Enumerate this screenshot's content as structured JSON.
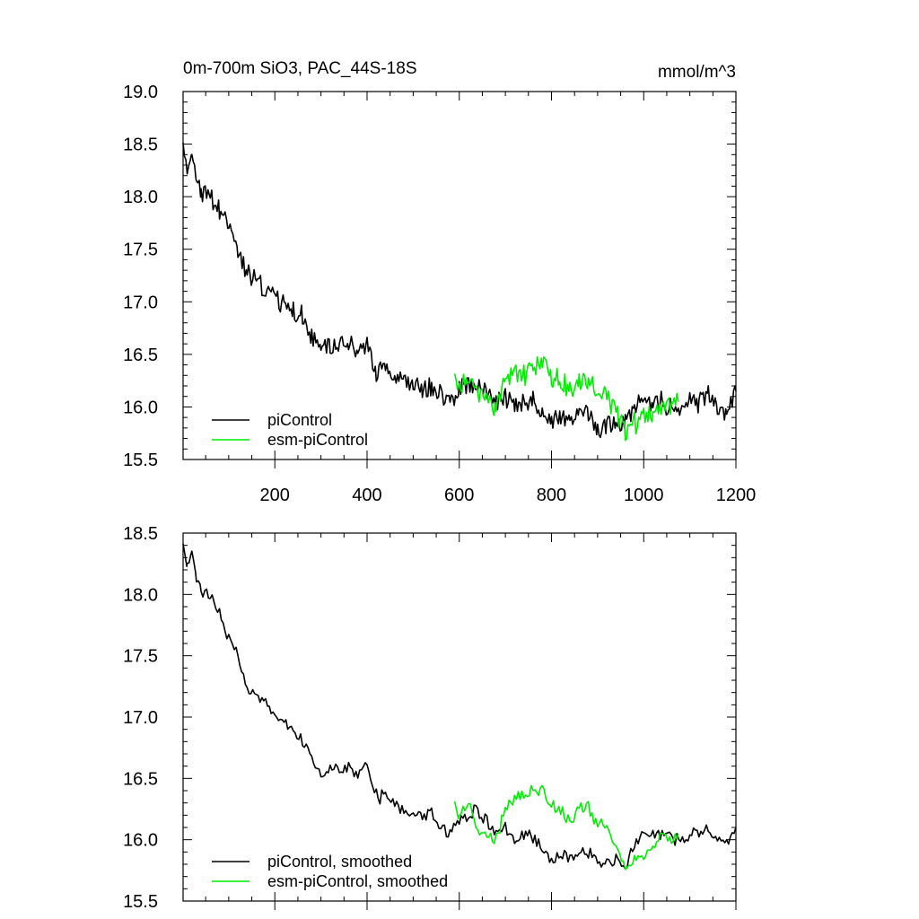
{
  "header": {
    "title": "0m-700m SiO3, PAC_44S-18S",
    "units": "mmol/m^3"
  },
  "colors": {
    "piControl": "#000000",
    "esm_piControl": "#00ee00"
  },
  "chart_data": [
    {
      "type": "line",
      "title": "0m-700m SiO3, PAC_44S-18S",
      "units_label": "mmol/m^3",
      "xlabel": "",
      "ylabel": "",
      "xlim": [
        1,
        1200
      ],
      "ylim": [
        15.5,
        19.0
      ],
      "x_ticks": [
        200,
        400,
        600,
        800,
        1000,
        1200
      ],
      "x_tick_labels": [
        "200",
        "400",
        "600",
        "800",
        "1000",
        "1200"
      ],
      "y_ticks": [
        15.5,
        16.0,
        16.5,
        17.0,
        17.5,
        18.0,
        18.5,
        19.0
      ],
      "y_tick_labels": [
        "15.5",
        "16.0",
        "16.5",
        "17.0",
        "17.5",
        "18.0",
        "18.5",
        "19.0"
      ],
      "grid": false,
      "legend_position": "bottom-left",
      "series": [
        {
          "name": "piControl",
          "color": "#000000",
          "x": [
            1,
            10,
            20,
            30,
            40,
            60,
            80,
            100,
            120,
            140,
            160,
            180,
            200,
            220,
            240,
            260,
            280,
            300,
            320,
            340,
            360,
            380,
            400,
            420,
            440,
            460,
            480,
            500,
            520,
            540,
            560,
            580,
            600,
            620,
            640,
            660,
            680,
            700,
            720,
            740,
            760,
            780,
            800,
            820,
            840,
            860,
            880,
            900,
            920,
            940,
            960,
            980,
            1000,
            1020,
            1040,
            1060,
            1080,
            1100,
            1120,
            1140,
            1160,
            1180,
            1200
          ],
          "y": [
            18.45,
            18.3,
            18.35,
            18.2,
            18.05,
            18.0,
            17.85,
            17.7,
            17.45,
            17.3,
            17.2,
            17.1,
            17.05,
            16.95,
            16.9,
            16.85,
            16.7,
            16.55,
            16.6,
            16.55,
            16.6,
            16.5,
            16.6,
            16.3,
            16.35,
            16.3,
            16.25,
            16.2,
            16.15,
            16.2,
            16.1,
            16.05,
            16.15,
            16.2,
            16.25,
            16.15,
            16.05,
            16.1,
            16.0,
            16.05,
            16.05,
            15.95,
            15.85,
            15.9,
            15.85,
            15.95,
            15.9,
            15.8,
            15.85,
            15.85,
            15.85,
            15.95,
            16.1,
            16.05,
            16.05,
            16.0,
            16.0,
            16.05,
            16.05,
            16.1,
            16.0,
            15.95,
            16.15
          ]
        },
        {
          "name": "esm-piControl",
          "color": "#00ee00",
          "x": [
            590,
            600,
            620,
            640,
            660,
            680,
            700,
            720,
            740,
            760,
            780,
            800,
            820,
            840,
            860,
            880,
            900,
            920,
            940,
            960,
            980,
            1000,
            1020,
            1040,
            1060,
            1075
          ],
          "y": [
            16.3,
            16.2,
            16.3,
            16.15,
            16.05,
            16.0,
            16.25,
            16.35,
            16.3,
            16.35,
            16.4,
            16.3,
            16.25,
            16.15,
            16.25,
            16.25,
            16.15,
            16.1,
            15.95,
            15.75,
            15.85,
            15.9,
            15.95,
            16.0,
            16.0,
            16.05
          ]
        }
      ]
    },
    {
      "type": "line",
      "title": "",
      "xlabel": "",
      "ylabel": "",
      "xlim": [
        1,
        1200
      ],
      "ylim": [
        15.5,
        18.5
      ],
      "x_ticks": [
        200,
        400,
        600,
        800,
        1000,
        1200
      ],
      "y_ticks": [
        15.5,
        16.0,
        16.5,
        17.0,
        17.5,
        18.0,
        18.5
      ],
      "y_tick_labels": [
        "15.5",
        "16.0",
        "16.5",
        "17.0",
        "17.5",
        "18.0",
        "18.5"
      ],
      "grid": false,
      "legend_position": "bottom-left",
      "series": [
        {
          "name": "piControl, smoothed",
          "color": "#000000",
          "x": [
            1,
            10,
            20,
            30,
            40,
            60,
            80,
            100,
            120,
            140,
            160,
            180,
            200,
            220,
            240,
            260,
            280,
            300,
            320,
            340,
            360,
            380,
            400,
            420,
            440,
            460,
            480,
            500,
            520,
            540,
            560,
            580,
            600,
            620,
            640,
            660,
            680,
            700,
            720,
            740,
            760,
            780,
            800,
            820,
            840,
            860,
            880,
            900,
            920,
            940,
            960,
            980,
            1000,
            1020,
            1040,
            1060,
            1080,
            1100,
            1120,
            1140,
            1160,
            1180,
            1200
          ],
          "y": [
            18.4,
            18.25,
            18.35,
            18.1,
            18.05,
            18.0,
            17.85,
            17.65,
            17.5,
            17.25,
            17.15,
            17.1,
            17.0,
            16.95,
            16.9,
            16.8,
            16.7,
            16.5,
            16.6,
            16.55,
            16.6,
            16.5,
            16.6,
            16.35,
            16.35,
            16.3,
            16.25,
            16.2,
            16.2,
            16.2,
            16.1,
            16.05,
            16.15,
            16.2,
            16.25,
            16.15,
            16.05,
            16.1,
            16.0,
            16.05,
            16.0,
            15.95,
            15.85,
            15.9,
            15.85,
            15.9,
            15.9,
            15.85,
            15.8,
            15.85,
            15.8,
            15.95,
            16.1,
            16.05,
            16.05,
            16.0,
            16.0,
            16.05,
            16.05,
            16.1,
            16.0,
            15.95,
            16.1
          ]
        },
        {
          "name": "esm-piControl, smoothed",
          "color": "#00ee00",
          "x": [
            590,
            600,
            620,
            640,
            660,
            680,
            700,
            720,
            740,
            760,
            780,
            800,
            820,
            840,
            860,
            880,
            900,
            920,
            940,
            960,
            980,
            1000,
            1020,
            1040,
            1060,
            1075
          ],
          "y": [
            16.3,
            16.2,
            16.3,
            16.1,
            16.05,
            16.0,
            16.25,
            16.35,
            16.35,
            16.4,
            16.4,
            16.3,
            16.25,
            16.15,
            16.25,
            16.25,
            16.15,
            16.1,
            15.95,
            15.75,
            15.85,
            15.9,
            15.95,
            16.05,
            16.0,
            16.05
          ]
        }
      ]
    }
  ]
}
